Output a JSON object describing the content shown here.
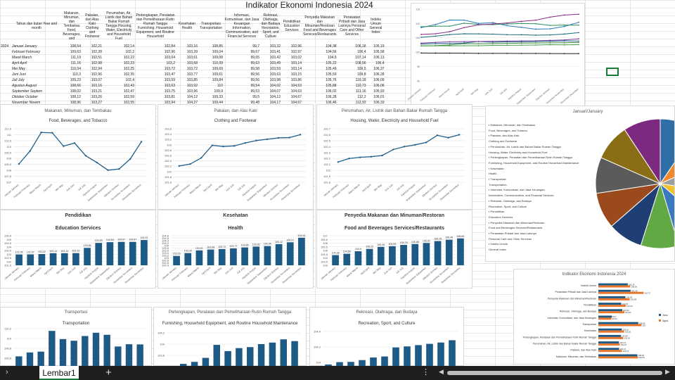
{
  "sheet_title": "Indikator Ekonomi Indonesia 2024",
  "table": {
    "headers": [
      "Tahun dan bulan Year and month",
      "Makanan, Minuman, dan Tembakau Food, Beverages, and",
      "Pakaian, dan Alas Kaki Clothing and Footwear",
      "Perumahan, Air, Listrik dan Bahan Bakar Rumah Tangga Housing, Water, Electricity and Household Fuel",
      "Perlengkapan, Peralatan dan Pemeliharaan Rutin Rumah Tangga Furnishing, Household Equipment, and Routine Household",
      "Kesehatan Health",
      "Transportasi Transportation",
      "Informasi, Komunikasi, dan Jasa Keuangan Information, Communication, and Financial Services",
      "Rekreasi, Olahraga, dan Budaya Recreation, Sport, and Culture",
      "Pendidikan Education Services",
      "Penyedia Makanan dan Minuman/Restoran Food and Beverages Services/Restaurants",
      "Perawatan Pribadi dan Jasa Lainnya Personal Care and Other Services",
      "Indeks Umum General Index"
    ],
    "year": "2024",
    "rows": [
      [
        "Januari January",
        "108,54",
        "102,21",
        "102,14",
        "102,84",
        "103,16",
        "108,85",
        "99,7",
        "103,32",
        "102,96",
        "104,38",
        "106,18",
        "105,19"
      ],
      [
        "Februari February",
        "109,63",
        "102,28",
        "102,2",
        "102,96",
        "103,39",
        "109,04",
        "99,67",
        "103,41",
        "102,97",
        "104,56",
        "106,4",
        "105,58"
      ],
      [
        "Maret March",
        "111,19",
        "102,51",
        "102,22",
        "103,04",
        "103,61",
        "109,08",
        "99,65",
        "103,42",
        "103,02",
        "104,9",
        "107,14",
        "106,13"
      ],
      [
        "April April",
        "111,16",
        "102,98",
        "102,23",
        "103,2",
        "103,68",
        "110,09",
        "99,63",
        "103,49",
        "103,14",
        "105,22",
        "108,56",
        "106,4"
      ],
      [
        "Mei May",
        "110,04",
        "102,94",
        "102,25",
        "103,72",
        "103,72",
        "109,69",
        "99,58",
        "103,59",
        "103,14",
        "105,49",
        "109,5",
        "106,37"
      ],
      [
        "Juni Juni",
        "110,3",
        "102,96",
        "102,35",
        "103,47",
        "103,77",
        "109,61",
        "99,56",
        "103,63",
        "103,15",
        "105,59",
        "109,8",
        "106,28"
      ],
      [
        "Juli July",
        "109,23",
        "103,07",
        "102,4",
        "103,59",
        "103,85",
        "109,84",
        "99,56",
        "103,98",
        "103,86",
        "105,76",
        "110,18",
        "106,09"
      ],
      [
        "Agustus August",
        "108,66",
        "103,16",
        "102,43",
        "103,63",
        "103,92",
        "110",
        "99,54",
        "104,02",
        "104,53",
        "105,88",
        "110,73",
        "106,06"
      ],
      [
        "September Septem",
        "108,02",
        "103,21",
        "102,47",
        "103,75",
        "103,96",
        "109,9",
        "99,53",
        "104,07",
        "104,63",
        "106,02",
        "111,16",
        "105,93"
      ],
      [
        "Oktober October",
        "108,12",
        "103,26",
        "102,59",
        "103,81",
        "104,12",
        "109,33",
        "99,5",
        "104,12",
        "104,67",
        "106,28",
        "112,2",
        "106,01"
      ],
      [
        "November Novem",
        "108,96",
        "103,27",
        "102,55",
        "103,94",
        "104,27",
        "109,44",
        "99,48",
        "104,17",
        "104,67",
        "106,46",
        "112,93",
        "106,33"
      ],
      [
        "Desember Decemb",
        "110,41",
        "103,38",
        "102,6",
        "103,87",
        "104,64",
        "109,43",
        "99,49",
        "104,26",
        "104,92",
        "106,64",
        "113,22",
        "106,8"
      ]
    ]
  },
  "months": [
    "Januari January",
    "Februari February",
    "Maret March",
    "April April",
    "Mei May",
    "Juni Juni",
    "Juli July",
    "Agustus August",
    "September September",
    "Oktober October",
    "November November",
    "Desember December"
  ],
  "colors": {
    "accent": "#1f5f8b",
    "line_main": "#215f8a",
    "bar": "#1e5a86",
    "sheet_tab_underline": "#1a7a3a"
  },
  "chart_data": [
    {
      "type": "line",
      "title": "Makanan, Minuman, dan Tembakau",
      "subtitle": "Food, Beverages, and Tobacco",
      "ylim": [
        107,
        111.5
      ],
      "yticks": [
        "111,5",
        "111",
        "110,5",
        "110",
        "109,5",
        "109",
        "108,5",
        "108",
        "107,5",
        "107"
      ],
      "values": [
        108.54,
        109.63,
        111.19,
        111.16,
        110.04,
        110.3,
        109.23,
        108.66,
        108.02,
        108.12,
        108.96,
        110.41
      ]
    },
    {
      "type": "line",
      "title": "Pakaian, dan Alas Kaki",
      "subtitle": "Clothing and Footwear",
      "ylim": [
        101.6,
        103.6
      ],
      "yticks": [
        "103,6",
        "103,4",
        "103,2",
        "103",
        "102,8",
        "102,6",
        "102,4",
        "102,2",
        "102",
        "101,8",
        "101,6"
      ],
      "values": [
        102.21,
        102.28,
        102.51,
        102.98,
        102.94,
        102.96,
        103.07,
        103.16,
        103.21,
        103.26,
        103.27,
        103.38
      ]
    },
    {
      "type": "line",
      "title": "Perumahan, Air, Listrik dan Bahan Bakar Rumah Tangga",
      "subtitle": "Housing, Water, Electricity and Household Fuel",
      "ylim": [
        101.8,
        102.7
      ],
      "yticks": [
        "102,7",
        "102,6",
        "102,5",
        "102,4",
        "102,3",
        "102,2",
        "102,1",
        "102",
        "101,9",
        "101,8"
      ],
      "values": [
        102.14,
        102.2,
        102.22,
        102.23,
        102.25,
        102.35,
        102.4,
        102.43,
        102.47,
        102.59,
        102.55,
        102.6
      ]
    },
    {
      "type": "bar",
      "title": "Pendidikan",
      "subtitle": "Education Services",
      "ylim": [
        101.5,
        105.5
      ],
      "yticks": [
        "105,5",
        "105",
        "104,5",
        "104",
        "103,5",
        "103",
        "102,5",
        "102",
        "101,5"
      ],
      "values": [
        102.96,
        102.97,
        103.02,
        103.14,
        103.14,
        103.15,
        103.86,
        104.53,
        104.63,
        104.67,
        104.67,
        104.92
      ],
      "labels": [
        "102,96",
        "102,97",
        "103,02",
        "103,14",
        "103,14",
        "103,15",
        "103,86",
        "104,53",
        "104,63",
        "104,67",
        "104,67",
        "104,92"
      ]
    },
    {
      "type": "bar",
      "title": "Kesehatan",
      "subtitle": "Health",
      "ylim": [
        102.4,
        104.8
      ],
      "yticks": [
        "104,8",
        "104,6",
        "104,4",
        "104,2",
        "104",
        "103,8",
        "103,6",
        "103,4",
        "103,2",
        "103",
        "102,8",
        "102,6",
        "102,4"
      ],
      "values": [
        103.16,
        103.39,
        103.61,
        103.68,
        103.72,
        103.77,
        103.85,
        103.92,
        103.96,
        104.12,
        104.27,
        104.64
      ],
      "labels": [
        "103,16",
        "103,39",
        "103,61",
        "103,68",
        "103,72",
        "103,77",
        "103,85",
        "103,92",
        "103,96",
        "104,12",
        "104,27",
        "104,64"
      ]
    },
    {
      "type": "bar",
      "title": "Penyedia Makanan dan Minuman/Restoran",
      "subtitle": "Food and Beverages Services/Restaurants",
      "ylim": [
        103,
        107
      ],
      "yticks": [
        "107",
        "106,5",
        "106",
        "105,5",
        "105",
        "104,5",
        "104",
        "103,5",
        "103"
      ],
      "values": [
        104.38,
        104.56,
        104.9,
        105.22,
        105.49,
        105.59,
        105.76,
        105.88,
        106.02,
        106.28,
        106.46,
        106.64
      ],
      "labels": [
        "104,38",
        "104,56",
        "104,9",
        "105,22",
        "105,49",
        "105,59",
        "105,76",
        "105,88",
        "106,02",
        "106,28",
        "106,46",
        "106,64"
      ]
    },
    {
      "type": "bar",
      "title": "Transportasi",
      "subtitle": "Transportation",
      "ylim": [
        107.8,
        110.2
      ],
      "yticks": [
        "110,2",
        "110",
        "109,8",
        "109,6",
        "109,4",
        "109,2"
      ],
      "values": [
        108.85,
        109.04,
        109.08,
        110.09,
        109.69,
        109.61,
        109.84,
        110,
        109.9,
        109.33,
        109.44,
        109.43
      ]
    },
    {
      "type": "bar",
      "title": "Perlengkapan, Peralatan dan Pemeliharaan Rutin Rumah Tangga",
      "subtitle": "Furnishing, Household Equipment, and Routine Household Maintenance",
      "ylim": [
        102.4,
        104.2
      ],
      "yticks": [
        "104,2",
        "104",
        "103,8",
        "103,6",
        "103,4"
      ],
      "values": [
        102.84,
        102.96,
        103.04,
        103.2,
        103.72,
        103.47,
        103.59,
        103.63,
        103.75,
        103.81,
        103.94,
        103.87
      ]
    },
    {
      "type": "bar",
      "title": "Rekreasi, Olahraga, dan Budaya",
      "subtitle": "Recreation, Sport, and Culture",
      "ylim": [
        102.8,
        104.6
      ],
      "yticks": [
        "104,4",
        "104,2",
        "104",
        "103,8"
      ],
      "values": [
        103.32,
        103.41,
        103.42,
        103.49,
        103.59,
        103.63,
        103.98,
        104.02,
        104.07,
        104.12,
        104.17,
        104.26
      ]
    },
    {
      "type": "pie",
      "title": "Januari/January",
      "values": [
        108.54,
        102.21,
        102.14,
        102.84,
        103.16,
        108.85,
        99.7,
        103.32,
        102.96,
        104.38,
        106.18
      ],
      "colors": [
        "#2f6fa5",
        "#f08a2e",
        "#9e9e9e",
        "#f2c12e",
        "#3a79c0",
        "#62a845",
        "#1f3f74",
        "#9a4a1c",
        "#5b5b5b",
        "#8a6d14",
        "#7b2a7f"
      ]
    },
    {
      "type": "bar",
      "orientation": "horizontal",
      "title": "Indikator Ekonomi Indonesia 2024",
      "categories": [
        "Indeks Umum",
        "Perawatan Pribadi dan Jasa Lainnya",
        "Penyedia Makanan dan Minuman/Restoran",
        "Pendidikan",
        "Rekreasi, Olahraga, dan Budaya",
        "Informasi, Komunikasi, dan Jasa Keuangan",
        "Transportasi",
        "Kesehatan",
        "Perlengkapan, Peralatan dan Pemeliharaan Rutin Rumah Tangga",
        "Perumahan, Air, Listrik dan Bahan Bakar Rumah Tangga",
        "Pakaian, dan Alas Kaki",
        "Makanan, Minuman, dan Tembakau"
      ],
      "series": [
        {
          "name": "Januari",
          "values": [
            105.19,
            106.18,
            104.38,
            102.96,
            103.32,
            99.7,
            108.85,
            103.16,
            102.84,
            102.14,
            102.21,
            108.54
          ]
        },
        {
          "name": "Agustus",
          "values": [
            106.06,
            110.73,
            105.88,
            104.53,
            104.02,
            99.54,
            110,
            103.92,
            103.63,
            102.43,
            103.16,
            108.66
          ]
        }
      ],
      "legend": [
        "Janu",
        "Agus"
      ]
    },
    {
      "type": "line",
      "title": "",
      "ylim": [
        0,
        115
      ],
      "yticks": [
        "115",
        "110",
        "105",
        "100",
        "95",
        "90"
      ],
      "series_values": [
        [
          108.54,
          109.63,
          111.19,
          111.16,
          110.04,
          110.3,
          109.23,
          108.66,
          108.02,
          108.12,
          108.96,
          110.41
        ],
        [
          102.21,
          102.28,
          102.51,
          102.98,
          102.94,
          102.96,
          103.07,
          103.16,
          103.21,
          103.26,
          103.27,
          103.38
        ],
        [
          102.14,
          102.2,
          102.22,
          102.23,
          102.25,
          102.35,
          102.4,
          102.43,
          102.47,
          102.59,
          102.55,
          102.6
        ],
        [
          102.84,
          102.96,
          103.04,
          103.2,
          103.72,
          103.47,
          103.59,
          103.63,
          103.75,
          103.81,
          103.94,
          103.87
        ],
        [
          103.16,
          103.39,
          103.61,
          103.68,
          103.72,
          103.77,
          103.85,
          103.92,
          103.96,
          104.12,
          104.27,
          104.64
        ],
        [
          108.85,
          109.04,
          109.08,
          110.09,
          109.69,
          109.61,
          109.84,
          110,
          109.9,
          109.33,
          109.44,
          109.43
        ],
        [
          99.7,
          99.67,
          99.65,
          99.63,
          99.58,
          99.56,
          99.56,
          99.54,
          99.53,
          99.5,
          99.48,
          99.49
        ],
        [
          106.18,
          106.4,
          107.14,
          108.56,
          109.5,
          109.8,
          110.18,
          110.73,
          111.16,
          112.2,
          112.93,
          113.22
        ],
        [
          105.19,
          105.58,
          106.13,
          106.4,
          106.37,
          106.28,
          106.09,
          106.06,
          105.93,
          106.01,
          106.33,
          106.8
        ]
      ],
      "colors": [
        "#2a7ab8",
        "#3c8a3c",
        "#4aa04a",
        "#1f5f8b",
        "#7a3f9b",
        "#2f8f5f",
        "#222222",
        "#8a2a8a",
        "#1a6a7a"
      ]
    }
  ],
  "pie_legend": [
    "Makanan, Minuman, dan Tembakau",
    "Food, Beverages, and Tobacco",
    "Pakaian, dan Alas Kaki",
    "Clothing and Footwear",
    "Perumahan, Air, Listrik dan Bahan Bakar Rumah Tangga",
    "Housing, Water, Electricity and Household Fuel",
    "Perlengkapan, Peralatan dan Pemeliharaan Rutin Rumah Tangga",
    "Furnishing, Household Equipment, and Routine Household Maintenance",
    "Kesehatan",
    "Health",
    "Transportasi",
    "Transportation",
    "Informasi, Komunikasi, dan Jasa Keuangan",
    "Information, Communication, and Financial Services",
    "Rekreasi, Olahraga, dan Budaya",
    "Recreation, Sport, and Culture",
    "Pendidikan",
    "Education Services",
    "Penyedia Makanan dan Minuman/Restoran",
    "Food and Beverages Services/Restaurants",
    "Perawatan Pribadi dan Jasa Lainnya",
    "Personal Care and Other Services",
    "Indeks Umum",
    "General Index"
  ],
  "sheet_tabs": [
    "Lembar1"
  ]
}
